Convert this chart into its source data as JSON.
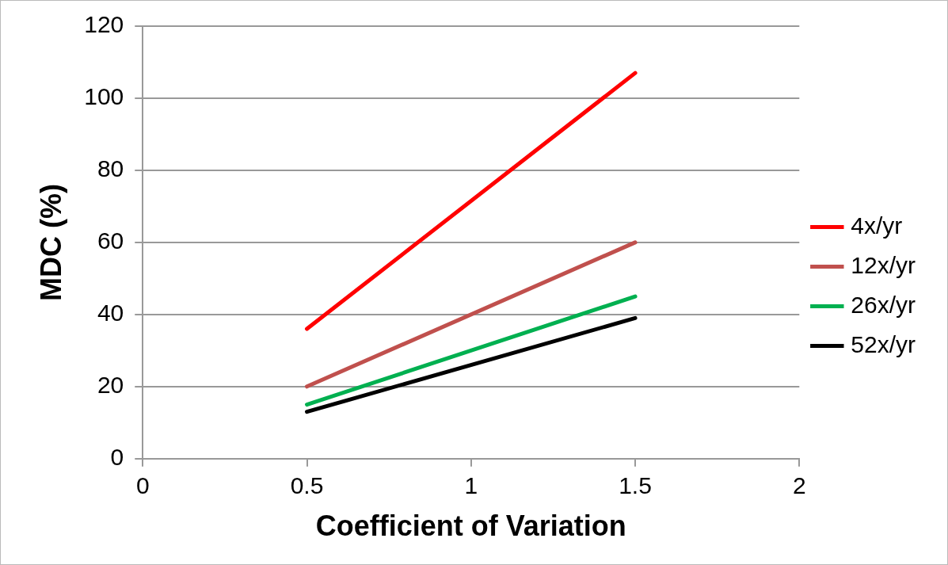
{
  "chart_data": {
    "type": "line",
    "xlabel": "Coefficient of Variation",
    "ylabel": "MDC (%)",
    "x": [
      0.5,
      1.5
    ],
    "series": [
      {
        "name": "4x/yr",
        "color": "#ff0000",
        "values": [
          36,
          107
        ]
      },
      {
        "name": "12x/yr",
        "color": "#c0504d",
        "values": [
          20,
          60
        ]
      },
      {
        "name": "26x/yr",
        "color": "#00b050",
        "values": [
          15,
          45
        ]
      },
      {
        "name": "52x/yr",
        "color": "#000000",
        "values": [
          13,
          39
        ]
      }
    ],
    "xlim": [
      0,
      2
    ],
    "xticks": [
      0,
      0.5,
      1,
      1.5,
      2
    ],
    "ylim": [
      0,
      120
    ],
    "yticks": [
      0,
      20,
      40,
      60,
      80,
      100,
      120
    ],
    "grid": "y",
    "legend": "right",
    "marker": "none",
    "line_style": "solid"
  }
}
